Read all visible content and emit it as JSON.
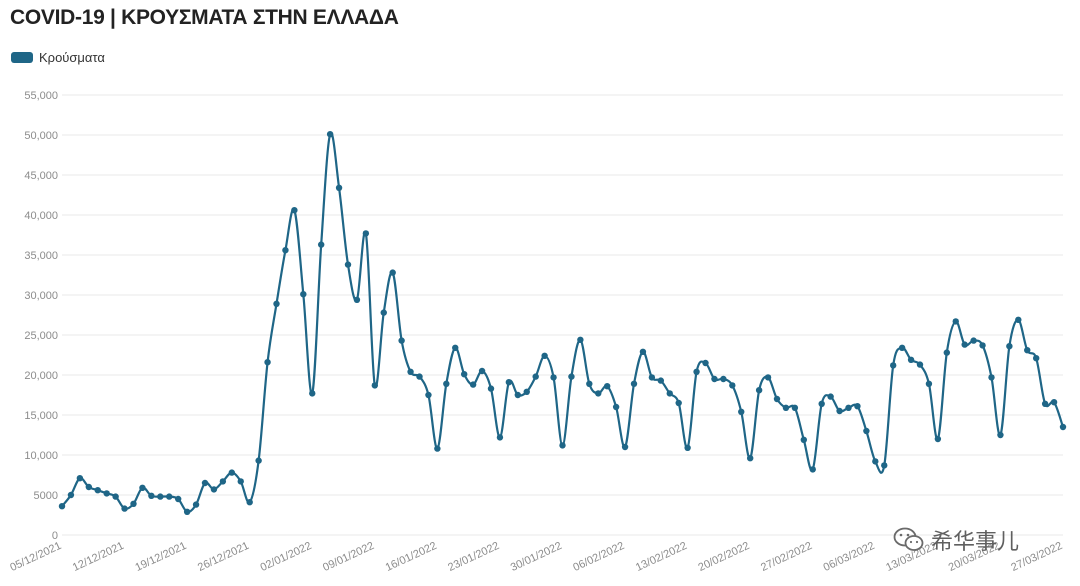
{
  "title": "COVID-19 | ΚΡΟΥΣΜΑΤΑ ΣΤΗΝ ΕΛΛΑΔΑ",
  "watermark": "希华事儿",
  "colors": {
    "series": "#1f6687",
    "grid": "#e8e8e8",
    "tick": "#8c8c8c"
  },
  "chart_data": {
    "type": "line",
    "legend_position": "top-left",
    "grid": true,
    "ylim": [
      0,
      55000
    ],
    "y_ticks": [
      0,
      5000,
      10000,
      15000,
      20000,
      25000,
      30000,
      35000,
      40000,
      45000,
      50000,
      55000
    ],
    "y_tick_labels": [
      "0",
      "5000",
      "10,000",
      "15,000",
      "20,000",
      "25,000",
      "30,000",
      "35,000",
      "40,000",
      "45,000",
      "50,000",
      "55,000"
    ],
    "x_start": "05/12/2021",
    "x_tick_labels": [
      "05/12/2021",
      "12/12/2021",
      "19/12/2021",
      "26/12/2021",
      "02/01/2022",
      "09/01/2022",
      "16/01/2022",
      "23/01/2022",
      "30/01/2022",
      "06/02/2022",
      "13/02/2022",
      "20/02/2022",
      "27/02/2022",
      "06/03/2022",
      "13/03/2022",
      "20/03/2022",
      "27/03/2022"
    ],
    "series": [
      {
        "name": "Κρούσματα",
        "values": [
          3600,
          5000,
          7100,
          6000,
          5600,
          5200,
          4800,
          3300,
          3900,
          5900,
          4900,
          4800,
          4800,
          4500,
          2900,
          3800,
          6500,
          5700,
          6700,
          7800,
          6700,
          4100,
          9300,
          21600,
          28900,
          35600,
          40600,
          30100,
          17700,
          36300,
          50100,
          43400,
          33800,
          29400,
          37700,
          18700,
          27800,
          32800,
          24300,
          20400,
          19800,
          17500,
          10800,
          18900,
          23400,
          20100,
          18800,
          20500,
          18300,
          12200,
          19100,
          17500,
          17900,
          19800,
          22400,
          19700,
          11200,
          19800,
          24400,
          18900,
          17700,
          18600,
          16000,
          11000,
          18900,
          22900,
          19700,
          19300,
          17700,
          16500,
          10900,
          20400,
          21500,
          19500,
          19500,
          18700,
          15400,
          9600,
          18100,
          19700,
          17000,
          15900,
          15900,
          11900,
          8200,
          16400,
          17300,
          15500,
          15900,
          16100,
          13000,
          9200,
          8700,
          21200,
          23400,
          21900,
          21300,
          18900,
          12000,
          22800,
          26700,
          23800,
          24300,
          23700,
          19700,
          12500,
          23600,
          26900,
          23100,
          22100,
          16400,
          16600,
          13500
        ]
      }
    ]
  }
}
